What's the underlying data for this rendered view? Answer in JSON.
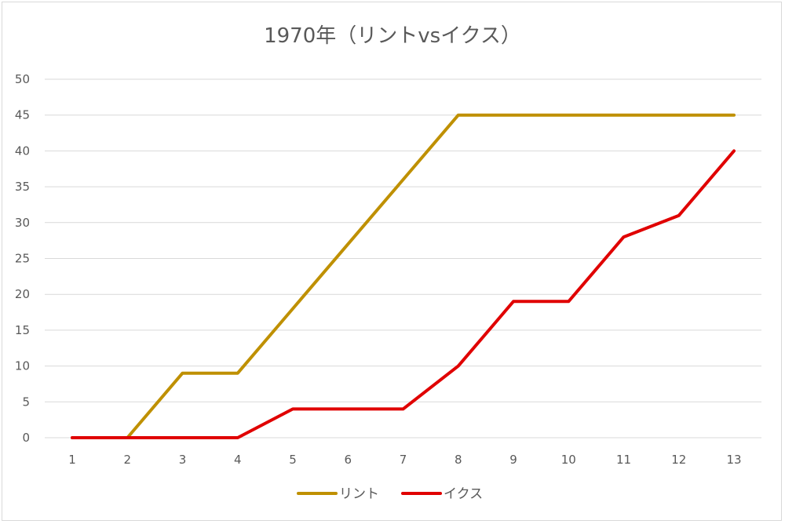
{
  "chart_data": {
    "type": "line",
    "title": "1970年（リントvsイクス）",
    "xlabel": "",
    "ylabel": "",
    "categories": [
      "1",
      "2",
      "3",
      "4",
      "5",
      "6",
      "7",
      "8",
      "9",
      "10",
      "11",
      "12",
      "13"
    ],
    "ylim": [
      0,
      50
    ],
    "yticks": [
      0,
      5,
      10,
      15,
      20,
      25,
      30,
      35,
      40,
      45,
      50
    ],
    "grid": true,
    "legend_position": "bottom",
    "series": [
      {
        "name": "リント",
        "color": "#BF9000",
        "values": [
          0,
          0,
          9,
          9,
          18,
          27,
          36,
          45,
          45,
          45,
          45,
          45,
          45
        ]
      },
      {
        "name": "イクス",
        "color": "#E00000",
        "values": [
          0,
          0,
          0,
          0,
          4,
          4,
          4,
          10,
          19,
          19,
          28,
          31,
          40
        ]
      }
    ]
  }
}
